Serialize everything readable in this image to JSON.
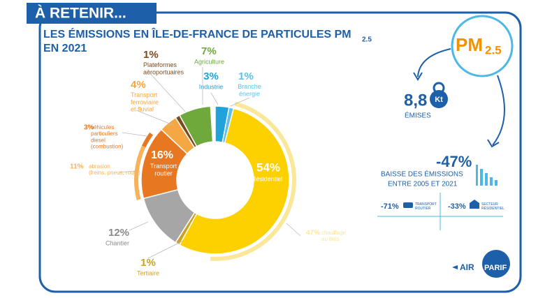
{
  "chart_data": {
    "type": "donut",
    "title": "LES ÉMISSIONS EN ÎLE-DE-FRANCE DE PARTICULES PM",
    "title_subscript": "2.5",
    "title_line2": "EN 2021",
    "categories": [
      "Industrie",
      "Branche\nénergie",
      "Résidentiel",
      "Tertiaire",
      "Chantier",
      "Transport\nroutier",
      "Transport\nferroviaire\net fluvial",
      "Plateformes\naéroportuaires",
      "Agriculture"
    ],
    "values": [
      3,
      1,
      54,
      1,
      12,
      16,
      4,
      1,
      7
    ],
    "value_labels": [
      "3%",
      "1%",
      "54%",
      "1%",
      "12%",
      "16%",
      "4%",
      "1%",
      "7%"
    ],
    "colors": [
      "#1fa3d8",
      "#5bc0eb",
      "#fdd000",
      "#c9a227",
      "#a6a6a6",
      "#e87722",
      "#f4a742",
      "#7a4a1e",
      "#6fa83b"
    ],
    "outer": {
      "categories": [
        "chauffage\nau bois",
        "abrasion\n(freins, pneus, route)",
        "véhicules\nparticuliers\ndiesel\n(combustion)"
      ],
      "values": [
        47,
        11,
        3
      ],
      "value_labels": [
        "47%",
        "11%",
        "3%"
      ],
      "colors": [
        "#fbe79a",
        "#f7b25c",
        "#e87722"
      ]
    }
  },
  "header": {
    "tag": "À RETENIR..."
  },
  "panel": {
    "pm": "PM",
    "pm_sub": "2.5",
    "mass": "8,8",
    "unit": "Kt",
    "emitted": "ÉMISES",
    "drop": "-47%",
    "drop_line1": "BAISSE DES ÉMISSIONS",
    "drop_line2": "ENTRE 2005 ET 2021",
    "road": "-71%",
    "road_label": "TRANSPORT\nROUTIER",
    "res": "-33%",
    "res_label": "SECTEUR\nRÉSIDENTIEL",
    "logo_left": "AIR",
    "logo_right": "PARIF"
  }
}
